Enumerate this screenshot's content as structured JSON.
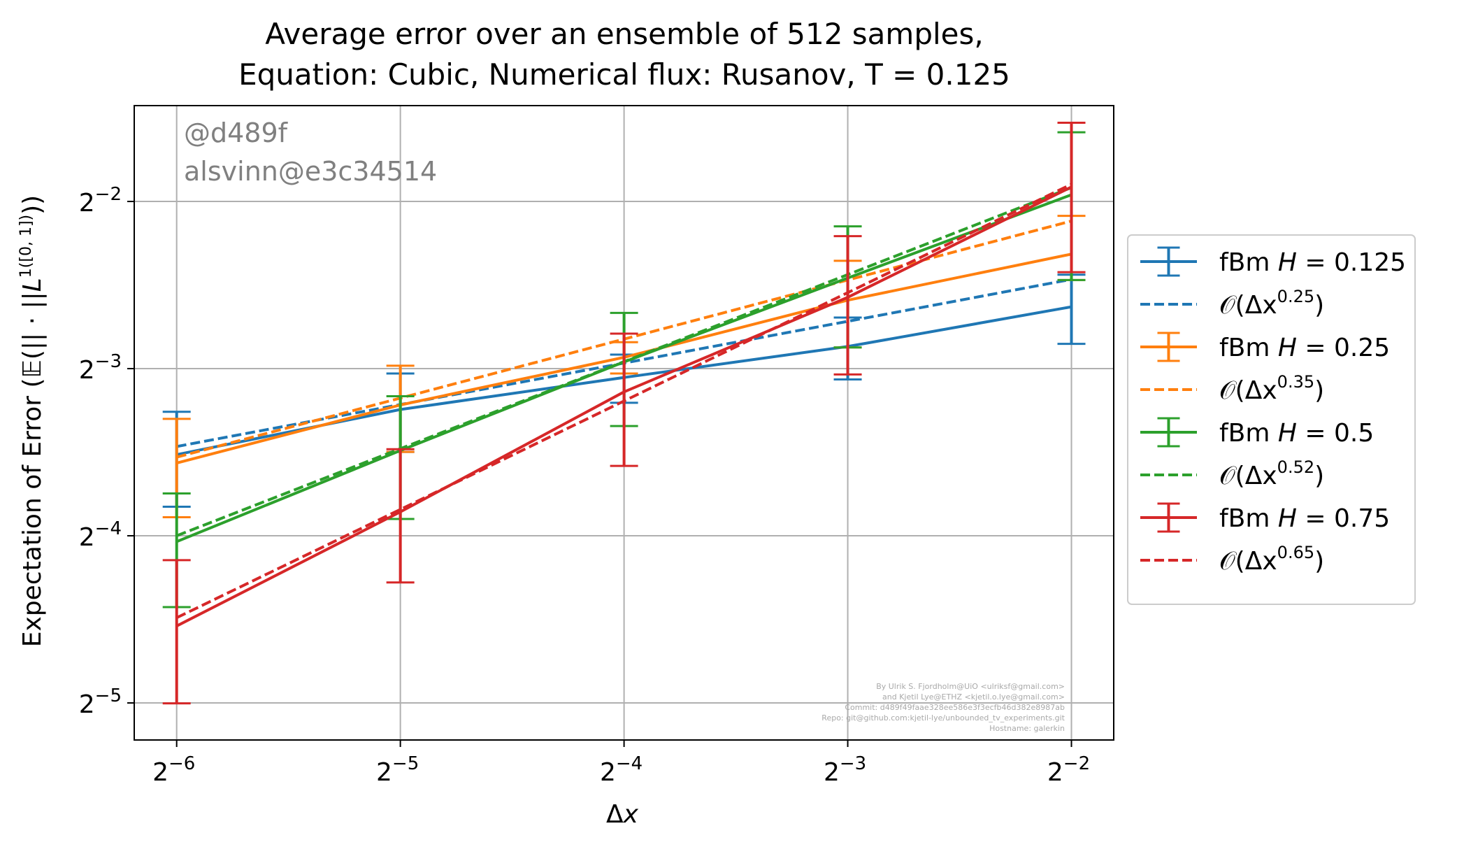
{
  "chart_data": {
    "type": "line",
    "title_lines": [
      "Average error over an ensemble of 512 samples,",
      "Equation: Cubic, Numerical flux: Rusanov, T = 0.125"
    ],
    "xlabel": "Δx",
    "ylabel": "Expectation of Error (𝔼(|| · ||L¹([0, 1])))",
    "x_scale": "log2",
    "y_scale": "log2",
    "x_ticks": [
      {
        "base": "2",
        "exp": "−6",
        "value": 0.015625
      },
      {
        "base": "2",
        "exp": "−5",
        "value": 0.03125
      },
      {
        "base": "2",
        "exp": "−4",
        "value": 0.0625
      },
      {
        "base": "2",
        "exp": "−3",
        "value": 0.125
      },
      {
        "base": "2",
        "exp": "−2",
        "value": 0.25
      }
    ],
    "y_ticks": [
      {
        "base": "2",
        "exp": "−5",
        "value": 0.03125
      },
      {
        "base": "2",
        "exp": "−4",
        "value": 0.0625
      },
      {
        "base": "2",
        "exp": "−3",
        "value": 0.125
      },
      {
        "base": "2",
        "exp": "−2",
        "value": 0.25
      }
    ],
    "xlim": [
      0.0137,
      0.285
    ],
    "ylim": [
      0.0268,
      0.372
    ],
    "grid": true,
    "legend_position": "outside-right",
    "x": [
      0.015625,
      0.03125,
      0.0625,
      0.125,
      0.25
    ],
    "series": [
      {
        "name": "fBm H = 0.125",
        "label_plain": "fBm ",
        "label_var": "H",
        "label_value": " = 0.125",
        "color": "#1f77b4",
        "style": "solid-errorbar",
        "values": [
          0.0875,
          0.1055,
          0.1205,
          0.137,
          0.1615
        ],
        "err_lower": [
          0.0705,
          0.0885,
          0.1085,
          0.1195,
          0.1385
        ],
        "err_upper": [
          0.1045,
          0.1225,
          0.1325,
          0.1545,
          0.1845
        ]
      },
      {
        "name": "𝒪(Δx^0.25)",
        "label_plain": "𝒪(Δx",
        "label_exp": "0.25",
        "label_close": ")",
        "color": "#1f77b4",
        "style": "dashed",
        "values": [
          0.0905,
          0.1077,
          0.1279,
          0.1521,
          0.181
        ]
      },
      {
        "name": "fBm H = 0.25",
        "label_plain": "fBm ",
        "label_var": "H",
        "label_value": " = 0.25",
        "color": "#ff7f0e",
        "style": "solid-errorbar",
        "values": [
          0.0845,
          0.1075,
          0.131,
          0.166,
          0.201
        ],
        "err_lower": [
          0.0675,
          0.0885,
          0.1225,
          0.1365,
          0.1805
        ],
        "err_upper": [
          0.1015,
          0.1265,
          0.1395,
          0.1955,
          0.2355
        ]
      },
      {
        "name": "𝒪(Δx^0.35)",
        "label_plain": "𝒪(Δx",
        "label_exp": "0.35",
        "label_close": ")",
        "color": "#ff7f0e",
        "style": "dashed",
        "values": [
          0.0866,
          0.1106,
          0.1413,
          0.1805,
          0.2305
        ]
      },
      {
        "name": "fBm H = 0.5",
        "label_plain": "fBm ",
        "label_var": "H",
        "label_value": " = 0.5",
        "color": "#2ca02c",
        "style": "solid-errorbar",
        "values": [
          0.061,
          0.089,
          0.1285,
          0.182,
          0.257
        ],
        "err_lower": [
          0.0465,
          0.067,
          0.0985,
          0.1365,
          0.1805
        ],
        "err_upper": [
          0.0745,
          0.1115,
          0.1575,
          0.2255,
          0.333
        ]
      },
      {
        "name": "𝒪(Δx^0.52)",
        "label_plain": "𝒪(Δx",
        "label_exp": "0.52",
        "label_close": ")",
        "color": "#2ca02c",
        "style": "dashed",
        "values": [
          0.0625,
          0.0897,
          0.1287,
          0.1846,
          0.2648
        ]
      },
      {
        "name": "fBm H = 0.75",
        "label_plain": "fBm ",
        "label_var": "H",
        "label_value": " = 0.75",
        "color": "#d62728",
        "style": "solid-errorbar",
        "values": [
          0.043,
          0.069,
          0.1135,
          0.168,
          0.2655
        ],
        "err_lower": [
          0.0312,
          0.0515,
          0.0835,
          0.122,
          0.1865
        ],
        "err_upper": [
          0.0565,
          0.0895,
          0.1445,
          0.2165,
          0.3465
        ]
      },
      {
        "name": "𝒪(Δx^0.65)",
        "label_plain": "𝒪(Δx",
        "label_exp": "0.65",
        "label_close": ")",
        "color": "#d62728",
        "style": "dashed",
        "values": [
          0.0445,
          0.0697,
          0.1093,
          0.1713,
          0.2685
        ]
      }
    ]
  },
  "watermark": [
    "@d489f",
    "alsvinn@e3c34514"
  ],
  "credits": [
    "By Ulrik S. Fjordholm@UiO <ulriksf@gmail.com>",
    "and Kjetil Lye@ETHZ <kjetil.o.lye@gmail.com>",
    "Commit: d489f49faae328ee586e3f3ecfb46d382e8987ab",
    "Repo: git@github.com:kjetil-lye/unbounded_tv_experiments.git",
    "Hostname: galerkin"
  ]
}
